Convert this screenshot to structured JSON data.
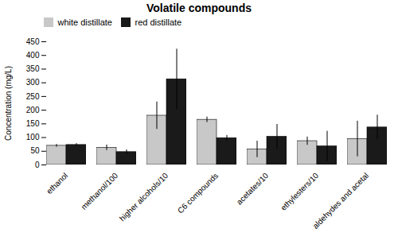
{
  "chart_data": {
    "type": "bar",
    "title": "Volatile compounds",
    "ylabel": "Concentration (mg/L)",
    "categories": [
      "ethanol",
      "methanol/100",
      "higher alcohols/10",
      "C6 compounds",
      "acetates/10",
      "ethylesters/10",
      "aldehydes and acetal"
    ],
    "series": [
      {
        "name": "white distillate",
        "color": "#c8c8c8",
        "values": [
          70,
          63,
          180,
          165,
          57,
          87,
          95
        ],
        "errors": [
          5,
          10,
          50,
          10,
          30,
          15,
          65
        ]
      },
      {
        "name": "red distillate",
        "color": "#1a1a1a",
        "values": [
          73,
          47,
          313,
          98,
          103,
          68,
          137
        ],
        "errors": [
          5,
          8,
          110,
          10,
          45,
          55,
          45
        ]
      }
    ],
    "ylim": [
      0,
      450
    ],
    "yticks": [
      0,
      50,
      100,
      150,
      200,
      250,
      300,
      350,
      400,
      450
    ],
    "grid": false,
    "legend": "upper left"
  }
}
